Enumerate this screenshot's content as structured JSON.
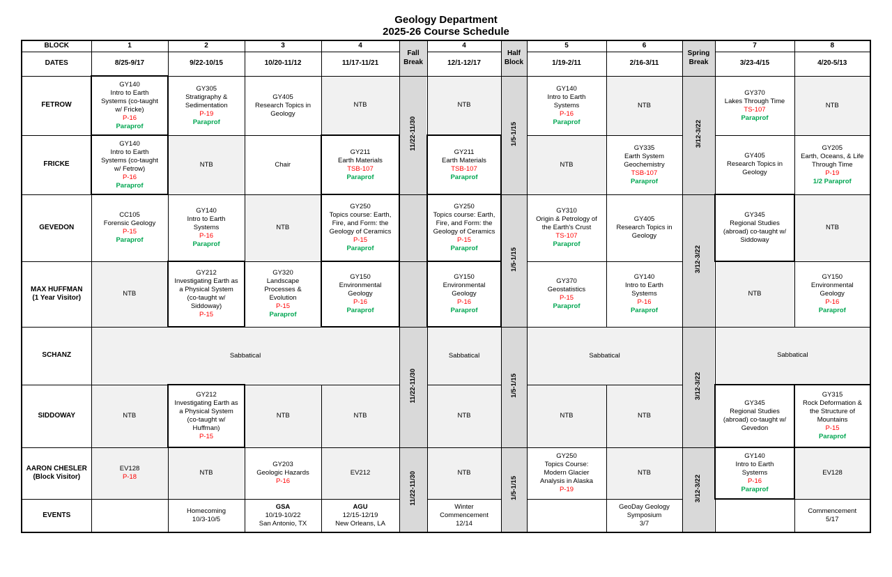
{
  "title": {
    "line1": "Geology Department",
    "line2": "2025-26 Course Schedule"
  },
  "colors": {
    "location_red": "#FF0000",
    "paraprof_green": "#00A651",
    "ntb_cell_bg": "#F1F1F1",
    "break_col_bg": "#D9D9D9"
  },
  "grid": {
    "header": [
      [
        {
          "t": "BLOCK",
          "hd": 1,
          "n": "block-row-label"
        },
        {
          "t": "1",
          "hd": 1
        },
        {
          "t": "2",
          "hd": 1
        },
        {
          "t": "3",
          "hd": 1
        },
        {
          "t": "4",
          "hd": 1
        },
        {
          "t": "Fall\nBreak",
          "hd": 1,
          "bg": "brk",
          "rs": 2,
          "n": "fall-break-header"
        },
        {
          "t": "4",
          "hd": 1
        },
        {
          "t": "Half\nBlock",
          "hd": 1,
          "bg": "brk",
          "rs": 2,
          "n": "half-block-header"
        },
        {
          "t": "5",
          "hd": 1
        },
        {
          "t": "6",
          "hd": 1
        },
        {
          "t": "Spring\nBreak",
          "hd": 1,
          "bg": "brk",
          "rs": 2,
          "n": "spring-break-header"
        },
        {
          "t": "7",
          "hd": 1
        },
        {
          "t": "8",
          "hd": 1
        }
      ],
      [
        {
          "t": "DATES",
          "hd": 1,
          "n": "dates-row-label"
        },
        {
          "t": "8/25-9/17",
          "hd": 1
        },
        {
          "t": "9/22-10/15",
          "hd": 1
        },
        {
          "t": "10/20-11/12",
          "hd": 1
        },
        {
          "t": "11/17-11/21",
          "hd": 1
        },
        {
          "t": "12/1-12/17",
          "hd": 1
        },
        {
          "t": "1/19-2/11",
          "hd": 1
        },
        {
          "t": "2/16-3/11",
          "hd": 1
        },
        {
          "t": "3/23-4/15",
          "hd": 1
        },
        {
          "t": "4/20-5/13",
          "hd": 1
        }
      ]
    ],
    "rows": [
      [
        {
          "t": "FETROW",
          "hd": 1,
          "n": "faculty-label"
        },
        {
          "t": "GY140\nIntro to Earth\nSystems (co-taught\nw/ Fricke)",
          "r": "P-16",
          "g": "Paraprof",
          "hv": 1
        },
        {
          "t": "GY305\nStratigraphy &\nSedimentation",
          "r": "P-19",
          "g": "Paraprof"
        },
        {
          "t": "GY405\nResearch Topics in\nGeology"
        },
        {
          "t": "NTB",
          "bg": "gray"
        },
        {
          "t": "11/22-11/30",
          "bg": "brk",
          "rot": 1,
          "rs": 2,
          "n": "fall-break-cell"
        },
        {
          "t": "NTB",
          "bg": "gray"
        },
        {
          "t": "1/5-1/15",
          "bg": "brk",
          "rot": 1,
          "rs": 2,
          "n": "half-block-cell"
        },
        {
          "t": "GY140\nIntro to Earth\nSystems",
          "r": "P-16",
          "g": "Paraprof"
        },
        {
          "t": "NTB",
          "bg": "gray"
        },
        {
          "t": "3/12-3/22",
          "bg": "brk",
          "rot": 1,
          "rs": 2,
          "n": "spring-break-cell"
        },
        {
          "t": "GY370\nLakes Through Time",
          "r": "TS-107",
          "g": "Paraprof"
        },
        {
          "t": "NTB",
          "bg": "gray"
        }
      ],
      [
        {
          "t": "FRICKE",
          "hd": 1,
          "n": "faculty-label"
        },
        {
          "t": "GY140\nIntro to Earth\nSystems (co-taught\nw/ Fetrow)",
          "r": "P-16",
          "g": "Paraprof",
          "hv": 1
        },
        {
          "t": "NTB",
          "bg": "gray"
        },
        {
          "t": "Chair"
        },
        {
          "t": "GY211\nEarth Materials",
          "r": "TSB-107",
          "g": "Paraprof",
          "hv": 1
        },
        {
          "t": "GY211\nEarth Materials",
          "r": "TSB-107",
          "g": "Paraprof",
          "hv": 1
        },
        {
          "t": "NTB",
          "bg": "gray"
        },
        {
          "t": "GY335\nEarth System\nGeochemistry",
          "r": "TSB-107",
          "g": "Paraprof"
        },
        {
          "t": "GY405\nResearch Topics in\nGeology"
        },
        {
          "t": "GY205\nEarth, Oceans, & Life\nThrough Time",
          "r": "P-19",
          "g": "1/2 Paraprof"
        }
      ],
      [
        {
          "t": "GEVEDON",
          "hd": 1,
          "n": "faculty-label"
        },
        {
          "t": "CC105\nForensic Geology",
          "r": "P-15",
          "g": "Paraprof"
        },
        {
          "t": "GY140\nIntro to Earth\nSystems",
          "r": "P-16",
          "g": "Paraprof"
        },
        {
          "t": "NTB",
          "bg": "gray"
        },
        {
          "t": "GY250\nTopics course: Earth,\nFire, and Form: the\nGeology of Ceramics",
          "r": "P-15",
          "g": "Paraprof",
          "hv": 1
        },
        {
          "t": "",
          "bg": "brk",
          "n": "fall-break-cell"
        },
        {
          "t": "GY250\nTopics course: Earth,\nFire, and Form: the\nGeology of Ceramics",
          "r": "P-15",
          "g": "Paraprof",
          "hv": 1
        },
        {
          "t": "1/5-1/15",
          "bg": "brk",
          "rot": 1,
          "rs": 2,
          "n": "half-block-cell"
        },
        {
          "t": "GY310\nOrigin & Petrology of\nthe Earth's Crust",
          "r": "TS-107",
          "g": "Paraprof"
        },
        {
          "t": "GY405\nResearch Topics in\nGeology"
        },
        {
          "t": "3/12-3/22",
          "bg": "brk",
          "rot": 1,
          "rs": 2,
          "n": "spring-break-cell"
        },
        {
          "t": "GY345\nRegional Studies\n(abroad) co-taught w/\nSiddoway",
          "hv": 1
        },
        {
          "t": "NTB",
          "bg": "gray"
        }
      ],
      [
        {
          "t": "MAX HUFFMAN\n(1 Year Visitor)",
          "hd": 1,
          "n": "faculty-label"
        },
        {
          "t": "NTB",
          "bg": "gray"
        },
        {
          "t": "GY212\nInvestigating Earth as\na Physical System\n(co-taught w/\nSiddoway)",
          "r": "P-15",
          "hv": 1
        },
        {
          "t": "GY320\nLandscape\nProcesses &\nEvolution",
          "r": "P-15",
          "g": "Paraprof"
        },
        {
          "t": "GY150\nEnvironmental\nGeology",
          "r": "P-16",
          "g": "Paraprof",
          "hv": 1
        },
        {
          "t": "",
          "bg": "brk",
          "n": "fall-break-cell"
        },
        {
          "t": "GY150\nEnvironmental\nGeology",
          "r": "P-16",
          "g": "Paraprof",
          "hv": 1
        },
        {
          "t": "GY370\nGeostatistics",
          "r": "P-15",
          "g": "Paraprof"
        },
        {
          "t": "GY140\nIntro to Earth\nSystems",
          "r": "P-16",
          "g": "Paraprof"
        },
        {
          "t": "NTB",
          "bg": "gray"
        },
        {
          "t": "GY150\nEnvironmental\nGeology",
          "r": "P-16",
          "g": "Paraprof"
        }
      ],
      [
        {
          "t": "SCHANZ",
          "hd": 1,
          "n": "faculty-label"
        },
        {
          "t": "Sabbatical",
          "bg": "gray",
          "cs": 4
        },
        {
          "t": "11/22-11/30",
          "bg": "brk",
          "rot": 1,
          "rs": 2,
          "n": "fall-break-cell"
        },
        {
          "t": "Sabbatical",
          "bg": "gray"
        },
        {
          "t": "1/5-1/15",
          "bg": "brk",
          "rot": 1,
          "rs": 2,
          "n": "half-block-cell"
        },
        {
          "t": "Sabbatical",
          "bg": "gray",
          "cs": 2
        },
        {
          "t": "3/12-3/22",
          "bg": "brk",
          "rot": 1,
          "rs": 2,
          "n": "spring-break-cell"
        },
        {
          "t": "Sabbatical",
          "bg": "gray",
          "cs": 2
        }
      ],
      [
        {
          "t": "SIDDOWAY",
          "hd": 1,
          "n": "faculty-label"
        },
        {
          "t": "NTB",
          "bg": "gray"
        },
        {
          "t": "GY212\nInvestigating Earth as\na Physical System\n(co-taught w/\nHuffman)",
          "r": "P-15",
          "hv": 1
        },
        {
          "t": "NTB",
          "bg": "gray"
        },
        {
          "t": "NTB",
          "bg": "gray"
        },
        {
          "t": "NTB",
          "bg": "gray"
        },
        {
          "t": "NTB",
          "bg": "gray"
        },
        {
          "t": "NTB",
          "bg": "gray"
        },
        {
          "t": "GY345\nRegional Studies\n(abroad) co-taught w/\nGevedon",
          "hv": 1
        },
        {
          "t": "GY315\nRock Deformation &\nthe Structure of\nMountains",
          "r": "P-15",
          "g": "Paraprof",
          "hv": 1
        }
      ],
      [
        {
          "t": "AARON CHESLER\n(Block Visitor)",
          "hd": 1,
          "n": "faculty-label"
        },
        {
          "t": "EV128",
          "r": "P-18",
          "bg": "gray"
        },
        {
          "t": "NTB",
          "bg": "gray"
        },
        {
          "t": "GY203\nGeologic Hazards",
          "r": "P-16"
        },
        {
          "t": "EV212",
          "bg": "gray"
        },
        {
          "t": "11/22-11/30",
          "bg": "brk",
          "rot": 1,
          "rs": 2,
          "n": "fall-break-cell"
        },
        {
          "t": "NTB",
          "bg": "gray"
        },
        {
          "t": "1/5-1/15",
          "bg": "brk",
          "rot": 1,
          "rs": 2,
          "n": "half-block-cell"
        },
        {
          "t": "GY250\nTopics Course:\nModern Glacier\nAnalysis in Alaska",
          "r": "P-19"
        },
        {
          "t": "NTB",
          "bg": "gray"
        },
        {
          "t": "3/12-3/22",
          "bg": "brk",
          "rot": 1,
          "rs": 2,
          "n": "spring-break-cell"
        },
        {
          "t": "GY140\nIntro to Earth\nSystems",
          "r": "P-16",
          "g": "Paraprof",
          "hv": 1
        },
        {
          "t": "EV128",
          "bg": "gray"
        }
      ],
      [
        {
          "t": "EVENTS",
          "hd": 1,
          "n": "faculty-label"
        },
        {
          "t": ""
        },
        {
          "t": "Homecoming\n10/3-10/5"
        },
        {
          "tb": "GSA",
          "t": "10/19-10/22\nSan Antonio, TX"
        },
        {
          "tb": "AGU",
          "t": "12/15-12/19\nNew Orleans, LA"
        },
        {
          "t": "Winter\nCommencement\n12/14"
        },
        {
          "t": ""
        },
        {
          "t": "GeoDay Geology\nSymposium\n3/7"
        },
        {
          "t": ""
        },
        {
          "t": "Commencement\n5/17"
        }
      ]
    ]
  }
}
